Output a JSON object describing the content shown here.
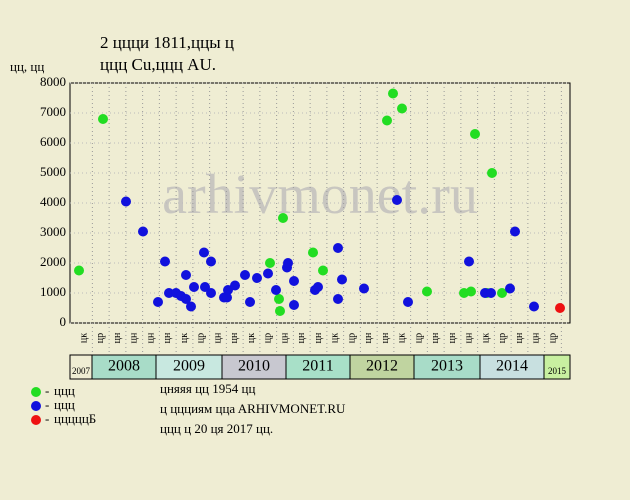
{
  "chart_data": {
    "type": "scatter",
    "title": "2 ццци 1811,ццы ц",
    "subtitle": "ццц Cu,ццц AU.",
    "y_label": "цц, цц",
    "watermark": "arhivmonet.ru",
    "ylim": [
      0,
      8000
    ],
    "yticks": [
      0,
      1000,
      2000,
      3000,
      4000,
      5000,
      6000,
      7000,
      8000
    ],
    "xlim": [
      0,
      30
    ],
    "grid": true,
    "x_labels": [
      "цк",
      "цр",
      "цн",
      "цн",
      "цн",
      "цн",
      "цк",
      "цр",
      "цн",
      "цн",
      "цк",
      "цр",
      "цн",
      "цн",
      "цн",
      "цк",
      "цр",
      "цн",
      "цн",
      "цк",
      "цр",
      "цн",
      "цн",
      "цн",
      "цк",
      "цр",
      "цн",
      "цн",
      "цр"
    ],
    "years": [
      {
        "label": "2007",
        "color": "#efedd3"
      },
      {
        "label": "2008",
        "color": "#a8dcc8"
      },
      {
        "label": "2009",
        "color": "#c8e8e0"
      },
      {
        "label": "2010",
        "color": "#c8c8d0"
      },
      {
        "label": "2011",
        "color": "#a8e0c8"
      },
      {
        "label": "2012",
        "color": "#c0d4a0"
      },
      {
        "label": "2013",
        "color": "#a8dcc8"
      },
      {
        "label": "2014",
        "color": "#c8e0e0"
      },
      {
        "label": "2015",
        "color": "#c8f0a0"
      }
    ],
    "series": [
      {
        "name": "ццц",
        "color": "#22dd22",
        "x": [
          0.54,
          1.98,
          12,
          12.54,
          12.6,
          12.78,
          14.58,
          15.18,
          19.02,
          19.38,
          19.92,
          21.42,
          23.64,
          24.06,
          24.3,
          25.02,
          25.32,
          25.92
        ],
        "values": [
          1750,
          6800,
          2000,
          800,
          400,
          3500,
          2350,
          1750,
          6750,
          7650,
          7150,
          1050,
          1000,
          1050,
          6300,
          1000,
          5000,
          1000
        ]
      },
      {
        "name": "ццц",
        "color": "#1111dd",
        "x": [
          3.36,
          4.38,
          5.28,
          5.7,
          5.94,
          6.36,
          6.66,
          6.96,
          6.96,
          7.26,
          7.44,
          8.04,
          8.1,
          8.46,
          8.46,
          9.24,
          9.42,
          9.48,
          9.9,
          10.5,
          10.8,
          11.22,
          11.88,
          12.36,
          13.02,
          13.08,
          13.44,
          13.44,
          14.7,
          14.88,
          16.08,
          16.08,
          16.32,
          17.64,
          19.62,
          20.28,
          23.94,
          24.9,
          25.26,
          26.4,
          26.7,
          27.84
        ],
        "values": [
          4050,
          3050,
          700,
          2050,
          1000,
          1000,
          900,
          1600,
          800,
          550,
          1200,
          2350,
          1200,
          2050,
          1000,
          850,
          850,
          1100,
          1250,
          1600,
          700,
          1500,
          1650,
          1100,
          1850,
          2000,
          1400,
          600,
          1100,
          1200,
          2500,
          800,
          1450,
          1150,
          4100,
          700,
          2050,
          1000,
          1000,
          1150,
          3050,
          550
        ]
      },
      {
        "name": "цццццБ",
        "color": "#ee1111",
        "x": [
          29.4
        ],
        "values": [
          500
        ]
      }
    ],
    "notes": [
      "цняяя цц 1954 цц",
      "ц ццциям ццa ARHIVMONET.RU",
      "ццц ц 20 ця 2017 цц."
    ]
  }
}
